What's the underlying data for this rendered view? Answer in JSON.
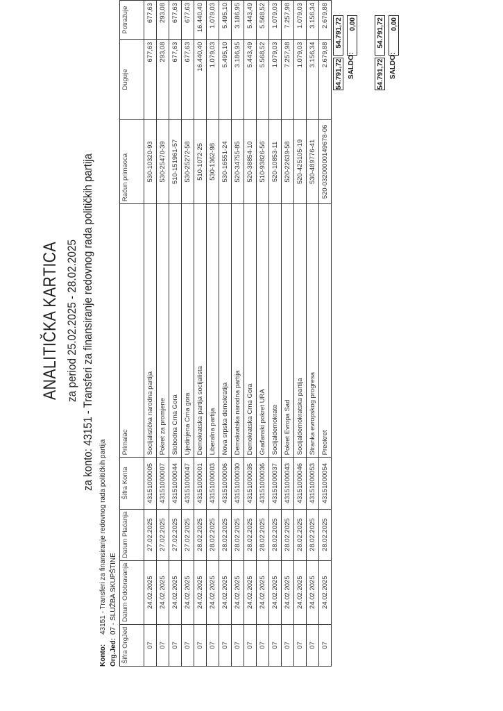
{
  "header": {
    "title": "ANALITIČKA KARTICA",
    "period": "za period 25.02.2025 - 28.02.2025",
    "konto_title": "za konto: 43151 - Transferi za finansiranje redovnog rada političkih partija"
  },
  "meta": {
    "konto_label": "Konto:",
    "konto_value": "43151 - Transferi za finansiranje redovnog rada političkih partija",
    "orgjed_label": "Org.Jed:",
    "orgjed_value": "07 - SLUŽBA SKUPŠTINE"
  },
  "table": {
    "columns": [
      "Šifra OrgJed",
      "Datum Odobravanja",
      "Datum Plaćanja",
      "Šifra Konta",
      "Primalac",
      "Račun primaoca",
      "Duguje",
      "Potražuje"
    ],
    "rows": [
      [
        "07",
        "24.02.2025",
        "27.02.2025",
        "43151000005",
        "Socijalistička narodna partija",
        "530-10320-93",
        "677,63",
        "677,63"
      ],
      [
        "07",
        "24.02.2025",
        "27.02.2025",
        "43151000007",
        "Pokret za promjene",
        "530-25470-39",
        "293,08",
        "293,08"
      ],
      [
        "07",
        "24.02.2025",
        "27.02.2025",
        "43151000044",
        "Slobodna Crna Gora",
        "510-151961-57",
        "677,63",
        "677,63"
      ],
      [
        "07",
        "24.02.2025",
        "27.02.2025",
        "43151000047",
        "Ujedinjena Crna gora",
        "530-25272-58",
        "677,63",
        "677,63"
      ],
      [
        "07",
        "24.02.2025",
        "28.02.2025",
        "43151000001",
        "Demokratska partija socijalista",
        "510-1072-25",
        "16.440,40",
        "16.440,40"
      ],
      [
        "07",
        "24.02.2025",
        "28.02.2025",
        "43151000003",
        "Liberalna partija",
        "530-1362-98",
        "1.079,03",
        "1.079,03"
      ],
      [
        "07",
        "24.02.2025",
        "28.02.2025",
        "43151000006",
        "Nova srpska demokratija",
        "530-16551-24",
        "5.495,10",
        "5.495,10"
      ],
      [
        "07",
        "24.02.2025",
        "28.02.2025",
        "43151000030",
        "Demokratska narodna partija",
        "520-34755-85",
        "3.186,95",
        "3.186,95"
      ],
      [
        "07",
        "24.02.2025",
        "28.02.2025",
        "43151000035",
        "Demokratska Crna Gora",
        "520-38854-10",
        "5.443,49",
        "5.443,49"
      ],
      [
        "07",
        "24.02.2025",
        "28.02.2025",
        "43151000036",
        "Građanski pokret URA",
        "510-93826-56",
        "5.568,52",
        "5.568,52"
      ],
      [
        "07",
        "24.02.2025",
        "28.02.2025",
        "43151000037",
        "Socijaldemokrate",
        "520-10853-11",
        "1.079,03",
        "1.079,03"
      ],
      [
        "07",
        "24.02.2025",
        "28.02.2025",
        "43151000043",
        "Pokret Evropa Sad",
        "520-22639-58",
        "7.257,98",
        "7.257,98"
      ],
      [
        "07",
        "24.02.2025",
        "28.02.2025",
        "43151000046",
        "Socijaldemokratska partija",
        "520-425105-19",
        "1.079,03",
        "1.079,03"
      ],
      [
        "07",
        "24.02.2025",
        "28.02.2025",
        "43151000053",
        "Stranka evropskog progresa",
        "530-489776-41",
        "3.156,34",
        "3.156,34"
      ],
      [
        "07",
        "24.02.2025",
        "28.02.2025",
        "43151000054",
        "Preokret",
        "520-03200000149678-06",
        "2.679,88",
        "2.679,88"
      ]
    ]
  },
  "totals": [
    {
      "duguje": "54.791,72",
      "potrazuje": "54.791,72",
      "saldo_label": "SALDO:",
      "saldo": "0,00"
    },
    {
      "duguje": "54.791,72",
      "potrazuje": "54.791,72",
      "saldo_label": "SALDO:",
      "saldo": "0,00"
    }
  ]
}
